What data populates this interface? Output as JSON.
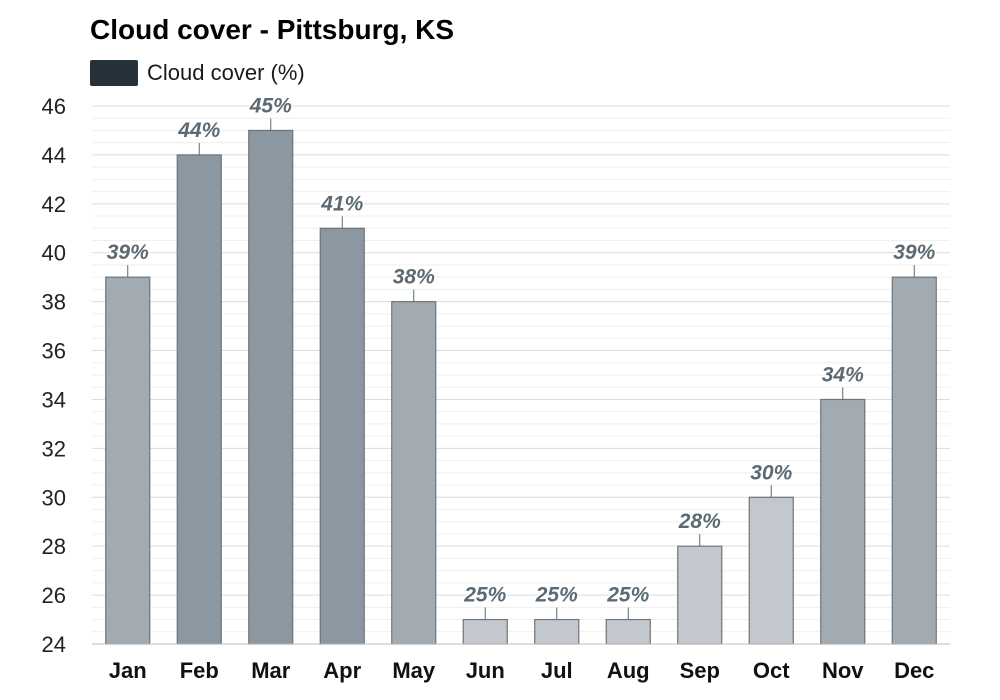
{
  "chart_data": {
    "type": "bar",
    "title": "Cloud cover - Pittsburg, KS",
    "categories": [
      "Jan",
      "Feb",
      "Mar",
      "Apr",
      "May",
      "Jun",
      "Jul",
      "Aug",
      "Sep",
      "Oct",
      "Nov",
      "Dec"
    ],
    "series": [
      {
        "name": "Cloud cover (%)",
        "values": [
          39,
          44,
          45,
          41,
          38,
          25,
          25,
          25,
          28,
          30,
          34,
          39
        ],
        "data_labels": [
          "39%",
          "44%",
          "45%",
          "41%",
          "38%",
          "25%",
          "25%",
          "25%",
          "28%",
          "30%",
          "34%",
          "39%"
        ]
      }
    ],
    "yticks": [
      "24",
      "26",
      "28",
      "30",
      "32",
      "34",
      "36",
      "38",
      "40",
      "42",
      "44",
      "46"
    ],
    "ylim": [
      24,
      46
    ],
    "xlabel": "",
    "ylabel": "",
    "grid": true,
    "legend_position": "top-left",
    "legend_color": "#26323a",
    "bar_colors": [
      "#a2abb2",
      "#8c98a1",
      "#8c98a1",
      "#8c98a1",
      "#a2abb2",
      "#c2c8cd",
      "#c2c8cd",
      "#c2c8cd",
      "#c2c8cd",
      "#c2c8cd",
      "#a2abb2",
      "#a2abb2"
    ],
    "bar_border_color": "#6e7479",
    "label_color": "#5c6a74"
  }
}
